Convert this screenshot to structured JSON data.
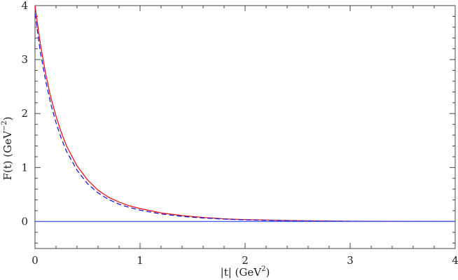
{
  "chart_data": {
    "type": "line",
    "title": "",
    "xlabel": {
      "base": "|t|  (GeV",
      "sup": "2",
      "end": ")"
    },
    "ylabel": {
      "base": "F(t)  (GeV",
      "sup": "−2",
      "end": ")"
    },
    "xlim": [
      0,
      4
    ],
    "ylim": [
      -0.5,
      4
    ],
    "x_ticks": [
      "0",
      "1",
      "2",
      "3",
      "4"
    ],
    "y_ticks": [
      "0",
      "1",
      "2",
      "3",
      "4"
    ],
    "grid": false,
    "legend": "none",
    "series": [
      {
        "style": "solid",
        "color": "#e8141c",
        "x": [
          0.0,
          0.05,
          0.1,
          0.15,
          0.2,
          0.25,
          0.3,
          0.4,
          0.5,
          0.6,
          0.7,
          0.8,
          0.9,
          1.0,
          1.2,
          1.4,
          1.6,
          1.8,
          2.0,
          2.5,
          3.0,
          3.5,
          4.0
        ],
        "y": [
          4.0,
          3.3,
          2.75,
          2.3,
          1.95,
          1.65,
          1.4,
          1.03,
          0.77,
          0.58,
          0.45,
          0.36,
          0.29,
          0.24,
          0.16,
          0.11,
          0.075,
          0.05,
          0.035,
          0.015,
          0.006,
          0.003,
          0.002
        ]
      },
      {
        "style": "dashed",
        "color": "#1a1ad0",
        "x": [
          0.0,
          0.05,
          0.1,
          0.15,
          0.2,
          0.25,
          0.3,
          0.4,
          0.5,
          0.6,
          0.7,
          0.8,
          0.9,
          1.0,
          1.2,
          1.4,
          1.6,
          1.8,
          2.0,
          2.5,
          3.0,
          3.5,
          4.0
        ],
        "y": [
          3.85,
          3.15,
          2.62,
          2.18,
          1.83,
          1.54,
          1.3,
          0.95,
          0.7,
          0.53,
          0.41,
          0.32,
          0.26,
          0.21,
          0.14,
          0.095,
          0.065,
          0.045,
          0.03,
          0.012,
          0.005,
          0.002,
          0.001
        ]
      },
      {
        "style": "solid",
        "color": "#4a5ef0",
        "x": [
          0.0,
          4.0
        ],
        "y": [
          0.0,
          0.0
        ]
      }
    ]
  }
}
